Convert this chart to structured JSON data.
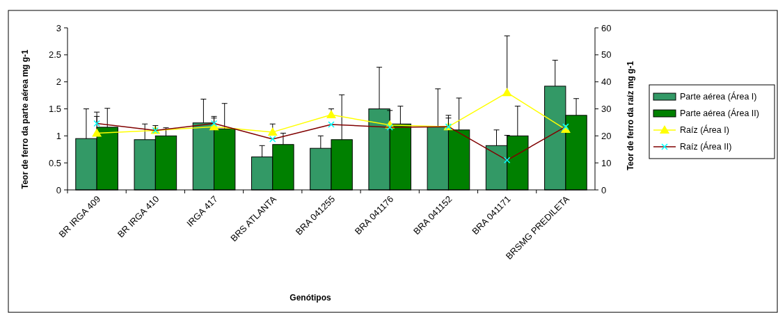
{
  "chart_data": {
    "type": "bar",
    "xlabel": "Genótipos",
    "ylabel": "Teor de ferro da parte aérea mg g-1",
    "y2label": "Teor de ferro da raíz mg g-1",
    "categories": [
      "BR IRGA 409",
      "BR IRGA 410",
      "IRGA 417",
      "BRS ATLANTA",
      "BRA 041255",
      "BRA 041176",
      "BRA 041152",
      "BRA 041171",
      "BRSMG PREDILETA"
    ],
    "ylim": [
      0,
      3
    ],
    "yticks": [
      0,
      0.5,
      1,
      1.5,
      2,
      2.5,
      3
    ],
    "y2lim": [
      0,
      60
    ],
    "y2ticks": [
      0,
      10,
      20,
      30,
      40,
      50,
      60
    ],
    "grid": false,
    "legend": "right",
    "series": [
      {
        "name": "Parte aérea (Área I)",
        "color": "#339966",
        "values": [
          0.95,
          0.93,
          1.24,
          0.61,
          0.77,
          1.5,
          1.17,
          0.82,
          1.92
        ],
        "errors": [
          [
            0.95,
            1.5
          ],
          [
            0.93,
            1.22
          ],
          [
            1.24,
            1.68
          ],
          [
            0.61,
            0.82
          ],
          [
            0.77,
            1.0
          ],
          [
            1.5,
            2.27
          ],
          [
            1.17,
            1.87
          ],
          [
            0.82,
            1.11
          ],
          [
            1.92,
            2.4
          ]
        ]
      },
      {
        "name": "Parte aérea (Área II)",
        "color": "#008000",
        "values": [
          1.16,
          1.0,
          1.13,
          0.84,
          0.93,
          1.22,
          1.11,
          1.0,
          1.38
        ],
        "errors": [
          [
            1.16,
            1.51
          ],
          [
            1.0,
            1.15
          ],
          [
            1.13,
            1.6
          ],
          [
            0.84,
            1.05
          ],
          [
            0.93,
            1.76
          ],
          [
            1.22,
            1.55
          ],
          [
            1.11,
            1.7
          ],
          [
            1.0,
            1.55
          ],
          [
            1.38,
            1.69
          ]
        ]
      },
      {
        "name": "Raíz (Área I)",
        "type": "line",
        "axis": "y2",
        "color": "#ffff00",
        "marker": "triangle",
        "values": [
          21,
          22,
          23.4,
          21.4,
          27.8,
          24,
          23.4,
          36,
          22.4
        ],
        "errors": [
          [
            21,
            27.2
          ],
          null,
          [
            23.4,
            26.6
          ],
          [
            21.4,
            24.4
          ],
          [
            27.8,
            30
          ],
          [
            24,
            29.4
          ],
          [
            23.4,
            27.6
          ],
          [
            36,
            57
          ],
          null
        ]
      },
      {
        "name": "Raíz (Área II)",
        "type": "line",
        "axis": "y2",
        "color": "#800000",
        "marker": "cross",
        "values": [
          24.6,
          22,
          24.6,
          18.8,
          24.2,
          23.2,
          23.4,
          11,
          23.4
        ],
        "errors": [
          [
            24.6,
            28.8
          ],
          [
            22,
            23.8
          ],
          [
            24.6,
            27.2
          ],
          null,
          null,
          null,
          [
            23.4,
            26.6
          ],
          [
            11,
            20.2
          ],
          null
        ]
      }
    ]
  }
}
